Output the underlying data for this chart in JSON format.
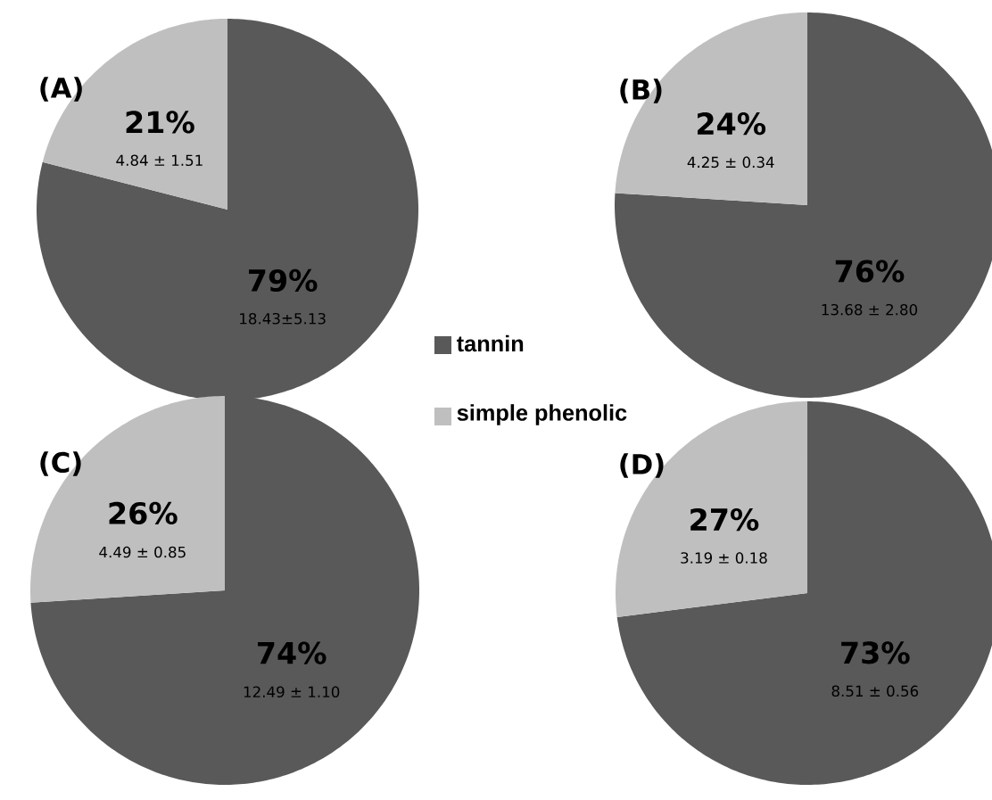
{
  "chart_data": [
    {
      "type": "pie",
      "title": "(A)",
      "categories": [
        "tannin",
        "simple phenolic"
      ],
      "values": [
        79,
        21
      ],
      "colors": [
        "#595959",
        "#bfbfbf"
      ],
      "value_labels": [
        "79%",
        "21%"
      ],
      "annotations": [
        "18.43±5.13",
        "4.84 ± 1.51"
      ],
      "legend": "right"
    },
    {
      "type": "pie",
      "title": "(B)",
      "values": [
        76,
        24
      ],
      "colors": [
        "#595959",
        "#bfbfbf"
      ],
      "value_labels": [
        "76%",
        "24%"
      ],
      "annotations": [
        "13.68 ± 2.80",
        "4.25 ± 0.34"
      ]
    },
    {
      "type": "pie",
      "title": "(C)",
      "values": [
        74,
        26
      ],
      "colors": [
        "#595959",
        "#bfbfbf"
      ],
      "value_labels": [
        "74%",
        "26%"
      ],
      "annotations": [
        "12.49 ± 1.10",
        "4.49 ± 0.85"
      ]
    },
    {
      "type": "pie",
      "title": "(D)",
      "values": [
        73,
        27
      ],
      "colors": [
        "#595959",
        "#bfbfbf"
      ],
      "value_labels": [
        "73%",
        "27%"
      ],
      "annotations": [
        "8.51 ± 0.56",
        "3.19 ± 0.18"
      ]
    }
  ]
}
